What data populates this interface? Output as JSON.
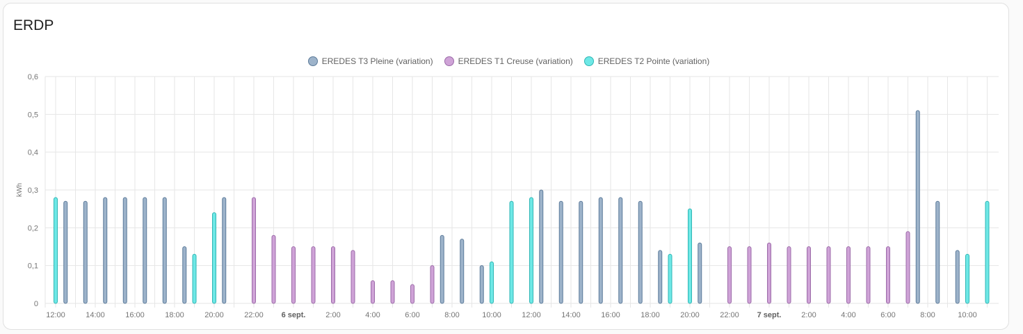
{
  "card": {
    "title": "ERDP"
  },
  "colors": {
    "pleine_fill": "#9db3ca",
    "pleine_stroke": "#5b7a99",
    "creuse_fill": "#cfa3d7",
    "creuse_stroke": "#9b6aa8",
    "pointe_fill": "#6ee8e6",
    "pointe_stroke": "#2fb5b4",
    "grid": "#e6e6e6",
    "axis_text": "#757575"
  },
  "legend": [
    {
      "label": "EREDES T3 Pleine (variation)",
      "series": "pleine"
    },
    {
      "label": "EREDES T1 Creuse (variation)",
      "series": "creuse"
    },
    {
      "label": "EREDES T2 Pointe (variation)",
      "series": "pointe"
    }
  ],
  "chart_data": {
    "type": "bar",
    "ylabel": "kWh",
    "ylim": [
      0,
      0.6
    ],
    "y_ticks": [
      "0",
      "0,1",
      "0,2",
      "0,3",
      "0,4",
      "0,5",
      "0,6"
    ],
    "x_tick_labels": [
      "12:00",
      "14:00",
      "16:00",
      "18:00",
      "20:00",
      "22:00",
      "6 sept.",
      "2:00",
      "4:00",
      "6:00",
      "8:00",
      "10:00",
      "12:00",
      "14:00",
      "16:00",
      "18:00",
      "20:00",
      "22:00",
      "7 sept.",
      "2:00",
      "4:00",
      "6:00",
      "8:00",
      "10:00"
    ],
    "bold_ticks": [
      "6 sept.",
      "7 sept."
    ],
    "x_start": "5 sept. 12:00",
    "grid": true,
    "legend_position": "top-center",
    "series": [
      {
        "name": "EREDES T3 Pleine (variation)",
        "key": "pleine",
        "points": [
          [
            "5 sept. 12:30",
            0.27
          ],
          [
            "5 sept. 13:30",
            0.27
          ],
          [
            "5 sept. 14:30",
            0.28
          ],
          [
            "5 sept. 15:30",
            0.28
          ],
          [
            "5 sept. 16:30",
            0.28
          ],
          [
            "5 sept. 17:30",
            0.28
          ],
          [
            "5 sept. 18:30",
            0.15
          ],
          [
            "5 sept. 20:30",
            0.28
          ],
          [
            "6 sept. 7:30",
            0.18
          ],
          [
            "6 sept. 8:30",
            0.17
          ],
          [
            "6 sept. 9:30",
            0.1
          ],
          [
            "6 sept. 12:30",
            0.3
          ],
          [
            "6 sept. 13:30",
            0.27
          ],
          [
            "6 sept. 14:30",
            0.27
          ],
          [
            "6 sept. 15:30",
            0.28
          ],
          [
            "6 sept. 16:30",
            0.28
          ],
          [
            "6 sept. 17:30",
            0.27
          ],
          [
            "6 sept. 18:30",
            0.14
          ],
          [
            "6 sept. 20:30",
            0.16
          ],
          [
            "7 sept. 7:30",
            0.51
          ],
          [
            "7 sept. 8:30",
            0.27
          ],
          [
            "7 sept. 9:30",
            0.14
          ]
        ]
      },
      {
        "name": "EREDES T1 Creuse (variation)",
        "key": "creuse",
        "points": [
          [
            "5 sept. 22:00",
            0.28
          ],
          [
            "5 sept. 23:00",
            0.18
          ],
          [
            "6 sept. 0:00",
            0.15
          ],
          [
            "6 sept. 1:00",
            0.15
          ],
          [
            "6 sept. 2:00",
            0.15
          ],
          [
            "6 sept. 3:00",
            0.14
          ],
          [
            "6 sept. 4:00",
            0.06
          ],
          [
            "6 sept. 5:00",
            0.06
          ],
          [
            "6 sept. 6:00",
            0.05
          ],
          [
            "6 sept. 7:00",
            0.1
          ],
          [
            "6 sept. 22:00",
            0.15
          ],
          [
            "6 sept. 23:00",
            0.15
          ],
          [
            "7 sept. 0:00",
            0.16
          ],
          [
            "7 sept. 1:00",
            0.15
          ],
          [
            "7 sept. 2:00",
            0.15
          ],
          [
            "7 sept. 3:00",
            0.15
          ],
          [
            "7 sept. 4:00",
            0.15
          ],
          [
            "7 sept. 5:00",
            0.15
          ],
          [
            "7 sept. 6:00",
            0.15
          ],
          [
            "7 sept. 7:00",
            0.19
          ]
        ]
      },
      {
        "name": "EREDES T2 Pointe (variation)",
        "key": "pointe",
        "points": [
          [
            "5 sept. 12:00",
            0.28
          ],
          [
            "5 sept. 19:00",
            0.13
          ],
          [
            "5 sept. 20:00",
            0.24
          ],
          [
            "6 sept. 10:00",
            0.11
          ],
          [
            "6 sept. 11:00",
            0.27
          ],
          [
            "6 sept. 12:00",
            0.28
          ],
          [
            "6 sept. 19:00",
            0.13
          ],
          [
            "6 sept. 20:00",
            0.25
          ],
          [
            "7 sept. 10:00",
            0.13
          ],
          [
            "7 sept. 11:00",
            0.27
          ]
        ]
      }
    ]
  }
}
